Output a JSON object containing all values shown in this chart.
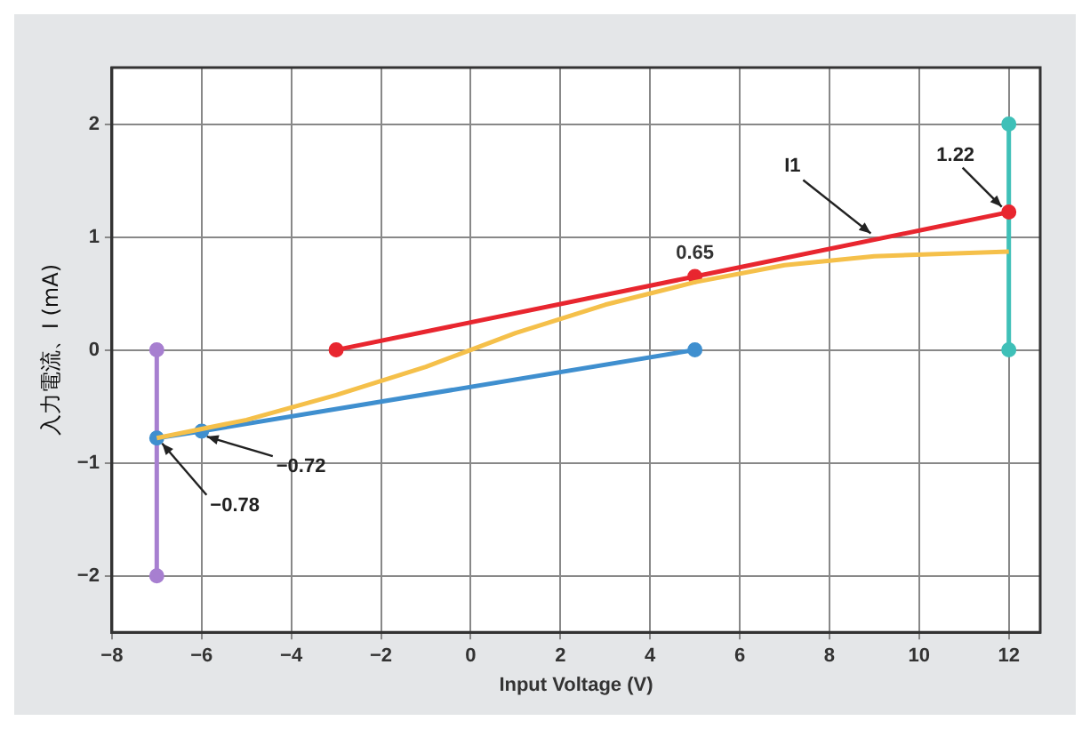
{
  "chart_data": {
    "type": "line",
    "xlabel": "Input Voltage (V)",
    "ylabel": "入力電流、I (mA)",
    "xlim": [
      -8,
      12.7
    ],
    "xticks": [
      -8,
      -6,
      -4,
      -2,
      0,
      2,
      4,
      6,
      8,
      10,
      12
    ],
    "ylim": [
      -2.5,
      2.5
    ],
    "yticks": [
      -2,
      -1,
      0,
      1,
      2
    ],
    "grid": true,
    "legend": false,
    "marker": "circle",
    "annotations": [
      {
        "text": "I1",
        "x": 9,
        "y": 1.0
      }
    ],
    "series": [
      {
        "color": "#f5c04a",
        "marker": "none",
        "x": [
          -7,
          -5,
          -3,
          -1,
          0,
          1,
          3,
          5,
          7,
          9,
          12
        ],
        "values": [
          -0.78,
          -0.62,
          -0.4,
          -0.15,
          0,
          0.15,
          0.4,
          0.6,
          0.75,
          0.83,
          0.87
        ]
      },
      {
        "color": "#e8262f",
        "x": [
          -3,
          5,
          12
        ],
        "values": [
          0,
          0.65,
          1.22
        ],
        "value_labels": [
          null,
          "0.65",
          "1.22"
        ]
      },
      {
        "color": "#3f8fcf",
        "x": [
          -7,
          -6,
          5
        ],
        "values": [
          -0.78,
          -0.72,
          0
        ],
        "value_labels": [
          "−0.78",
          "−0.72",
          null
        ]
      },
      {
        "color": "#3fc0b8",
        "x": [
          12,
          12
        ],
        "values": [
          0,
          2
        ]
      },
      {
        "color": "#a77fd0",
        "x": [
          -7,
          -7
        ],
        "values": [
          0,
          -2
        ]
      }
    ]
  }
}
